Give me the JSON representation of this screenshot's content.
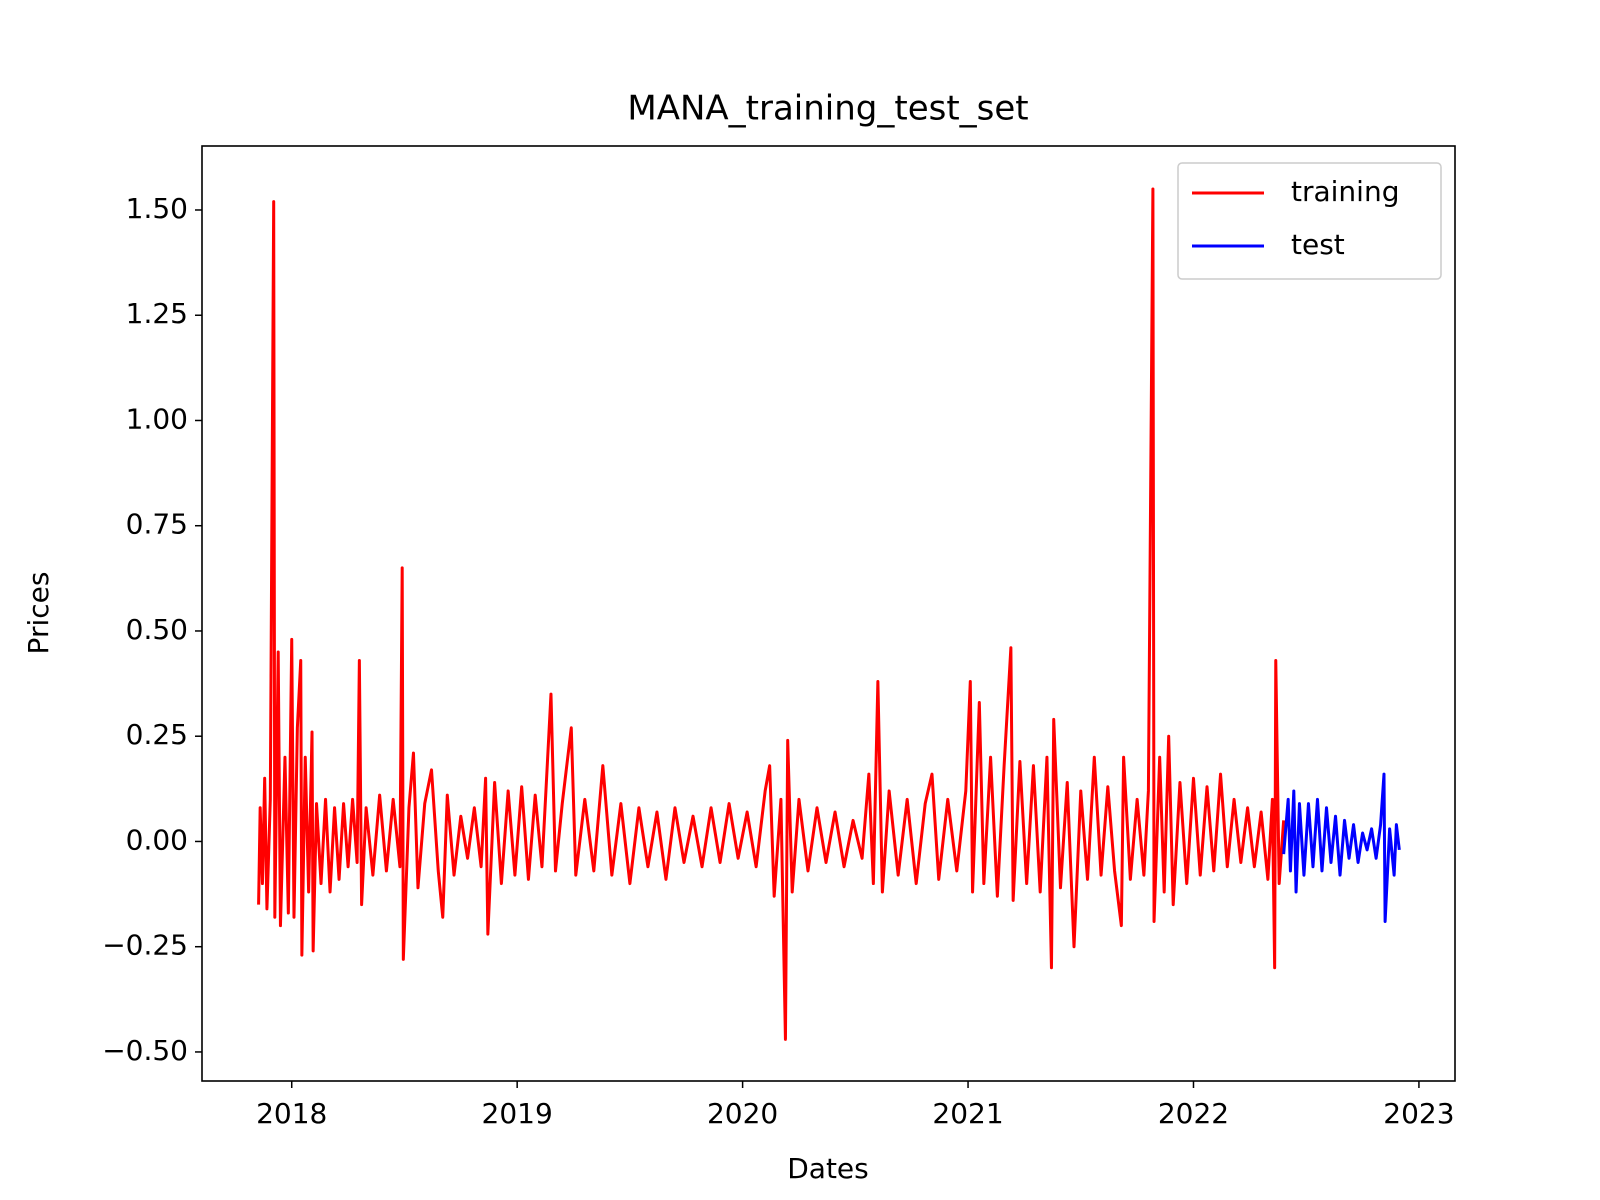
{
  "chart_data": {
    "type": "line",
    "title": "MANA_training_test_set",
    "xlabel": "Dates",
    "ylabel": "Prices",
    "xlim": [
      2017.602,
      2023.16
    ],
    "xticks": [
      2018,
      2019,
      2020,
      2021,
      2022,
      2023
    ],
    "ylim": [
      -0.569,
      1.652
    ],
    "yticks": [
      {
        "value": -0.5,
        "label": "−0.50"
      },
      {
        "value": -0.25,
        "label": "−0.25"
      },
      {
        "value": 0,
        "label": "0.00"
      },
      {
        "value": 0.25,
        "label": "0.25"
      },
      {
        "value": 0.5,
        "label": "0.50"
      },
      {
        "value": 0.75,
        "label": "0.75"
      },
      {
        "value": 1,
        "label": "1.00"
      },
      {
        "value": 1.25,
        "label": "1.25"
      },
      {
        "value": 1.5,
        "label": "1.50"
      }
    ],
    "grid": false,
    "legend": "upper right",
    "series": [
      {
        "name": "training",
        "color": "#ff0000",
        "x": [
          2017.853,
          2017.86,
          2017.87,
          2017.88,
          2017.89,
          2017.905,
          2017.92,
          2017.925,
          2017.94,
          2017.95,
          2017.97,
          2017.985,
          2018.0,
          2018.01,
          2018.025,
          2018.04,
          2018.045,
          2018.06,
          2018.075,
          2018.09,
          2018.095,
          2018.11,
          2018.13,
          2018.15,
          2018.17,
          2018.19,
          2018.21,
          2018.23,
          2018.25,
          2018.27,
          2018.29,
          2018.3,
          2018.31,
          2018.33,
          2018.36,
          2018.39,
          2018.42,
          2018.45,
          2018.48,
          2018.49,
          2018.495,
          2018.52,
          2018.54,
          2018.56,
          2018.59,
          2018.62,
          2018.65,
          2018.67,
          2018.69,
          2018.72,
          2018.75,
          2018.78,
          2018.81,
          2018.84,
          2018.86,
          2018.87,
          2018.9,
          2018.93,
          2018.96,
          2018.99,
          2019.02,
          2019.05,
          2019.08,
          2019.11,
          2019.15,
          2019.17,
          2019.2,
          2019.24,
          2019.26,
          2019.3,
          2019.34,
          2019.38,
          2019.42,
          2019.46,
          2019.5,
          2019.54,
          2019.58,
          2019.62,
          2019.66,
          2019.7,
          2019.74,
          2019.78,
          2019.82,
          2019.86,
          2019.9,
          2019.94,
          2019.98,
          2020.02,
          2020.06,
          2020.1,
          2020.12,
          2020.14,
          2020.17,
          2020.19,
          2020.2,
          2020.22,
          2020.25,
          2020.29,
          2020.33,
          2020.37,
          2020.41,
          2020.45,
          2020.49,
          2020.53,
          2020.56,
          2020.58,
          2020.6,
          2020.62,
          2020.65,
          2020.69,
          2020.73,
          2020.77,
          2020.81,
          2020.84,
          2020.87,
          2020.91,
          2020.95,
          2020.99,
          2021.01,
          2021.02,
          2021.05,
          2021.07,
          2021.1,
          2021.13,
          2021.16,
          2021.19,
          2021.2,
          2021.23,
          2021.26,
          2021.29,
          2021.32,
          2021.35,
          2021.37,
          2021.38,
          2021.41,
          2021.44,
          2021.47,
          2021.5,
          2021.53,
          2021.56,
          2021.59,
          2021.62,
          2021.65,
          2021.68,
          2021.69,
          2021.72,
          2021.75,
          2021.78,
          2021.8,
          2021.82,
          2021.825,
          2021.85,
          2021.87,
          2021.89,
          2021.91,
          2021.94,
          2021.97,
          2022.0,
          2022.03,
          2022.06,
          2022.09,
          2022.12,
          2022.15,
          2022.18,
          2022.21,
          2022.24,
          2022.27,
          2022.3,
          2022.33,
          2022.35,
          2022.36,
          2022.365,
          2022.38,
          2022.4
        ],
        "values": [
          -0.15,
          0.08,
          -0.1,
          0.15,
          -0.16,
          0.1,
          1.52,
          -0.18,
          0.45,
          -0.2,
          0.2,
          -0.17,
          0.48,
          -0.18,
          0.27,
          0.43,
          -0.27,
          0.2,
          -0.12,
          0.26,
          -0.26,
          0.09,
          -0.1,
          0.1,
          -0.12,
          0.08,
          -0.09,
          0.09,
          -0.06,
          0.1,
          -0.05,
          0.43,
          -0.15,
          0.08,
          -0.08,
          0.11,
          -0.07,
          0.1,
          -0.06,
          0.65,
          -0.28,
          0.08,
          0.21,
          -0.11,
          0.09,
          0.17,
          -0.07,
          -0.18,
          0.11,
          -0.08,
          0.06,
          -0.04,
          0.08,
          -0.06,
          0.15,
          -0.22,
          0.14,
          -0.1,
          0.12,
          -0.08,
          0.13,
          -0.09,
          0.11,
          -0.06,
          0.35,
          -0.07,
          0.09,
          0.27,
          -0.08,
          0.1,
          -0.07,
          0.18,
          -0.08,
          0.09,
          -0.1,
          0.08,
          -0.06,
          0.07,
          -0.09,
          0.08,
          -0.05,
          0.06,
          -0.06,
          0.08,
          -0.05,
          0.09,
          -0.04,
          0.07,
          -0.06,
          0.12,
          0.18,
          -0.13,
          0.1,
          -0.47,
          0.24,
          -0.12,
          0.1,
          -0.07,
          0.08,
          -0.05,
          0.07,
          -0.06,
          0.05,
          -0.04,
          0.16,
          -0.1,
          0.38,
          -0.12,
          0.12,
          -0.08,
          0.1,
          -0.1,
          0.09,
          0.16,
          -0.09,
          0.1,
          -0.07,
          0.12,
          0.38,
          -0.12,
          0.33,
          -0.1,
          0.2,
          -0.13,
          0.18,
          0.46,
          -0.14,
          0.19,
          -0.1,
          0.18,
          -0.12,
          0.2,
          -0.3,
          0.29,
          -0.11,
          0.14,
          -0.25,
          0.12,
          -0.09,
          0.2,
          -0.08,
          0.13,
          -0.07,
          -0.2,
          0.2,
          -0.09,
          0.1,
          -0.08,
          0.12,
          1.55,
          -0.19,
          0.2,
          -0.12,
          0.25,
          -0.15,
          0.14,
          -0.1,
          0.15,
          -0.08,
          0.13,
          -0.07,
          0.16,
          -0.06,
          0.1,
          -0.05,
          0.08,
          -0.06,
          0.07,
          -0.09,
          0.1,
          -0.3,
          0.43,
          -0.1,
          0.05
        ]
      },
      {
        "name": "test",
        "color": "#0000ff",
        "x": [
          2022.4,
          2022.42,
          2022.43,
          2022.445,
          2022.455,
          2022.47,
          2022.49,
          2022.51,
          2022.53,
          2022.55,
          2022.57,
          2022.59,
          2022.61,
          2022.63,
          2022.65,
          2022.67,
          2022.69,
          2022.71,
          2022.73,
          2022.75,
          2022.77,
          2022.79,
          2022.81,
          2022.83,
          2022.845,
          2022.85,
          2022.87,
          2022.89,
          2022.9,
          2022.913
        ],
        "values": [
          -0.03,
          0.1,
          -0.07,
          0.12,
          -0.12,
          0.09,
          -0.08,
          0.09,
          -0.06,
          0.1,
          -0.07,
          0.08,
          -0.05,
          0.06,
          -0.08,
          0.05,
          -0.04,
          0.04,
          -0.05,
          0.02,
          -0.02,
          0.03,
          -0.04,
          0.04,
          0.16,
          -0.19,
          0.03,
          -0.08,
          0.04,
          -0.02
        ]
      }
    ]
  }
}
